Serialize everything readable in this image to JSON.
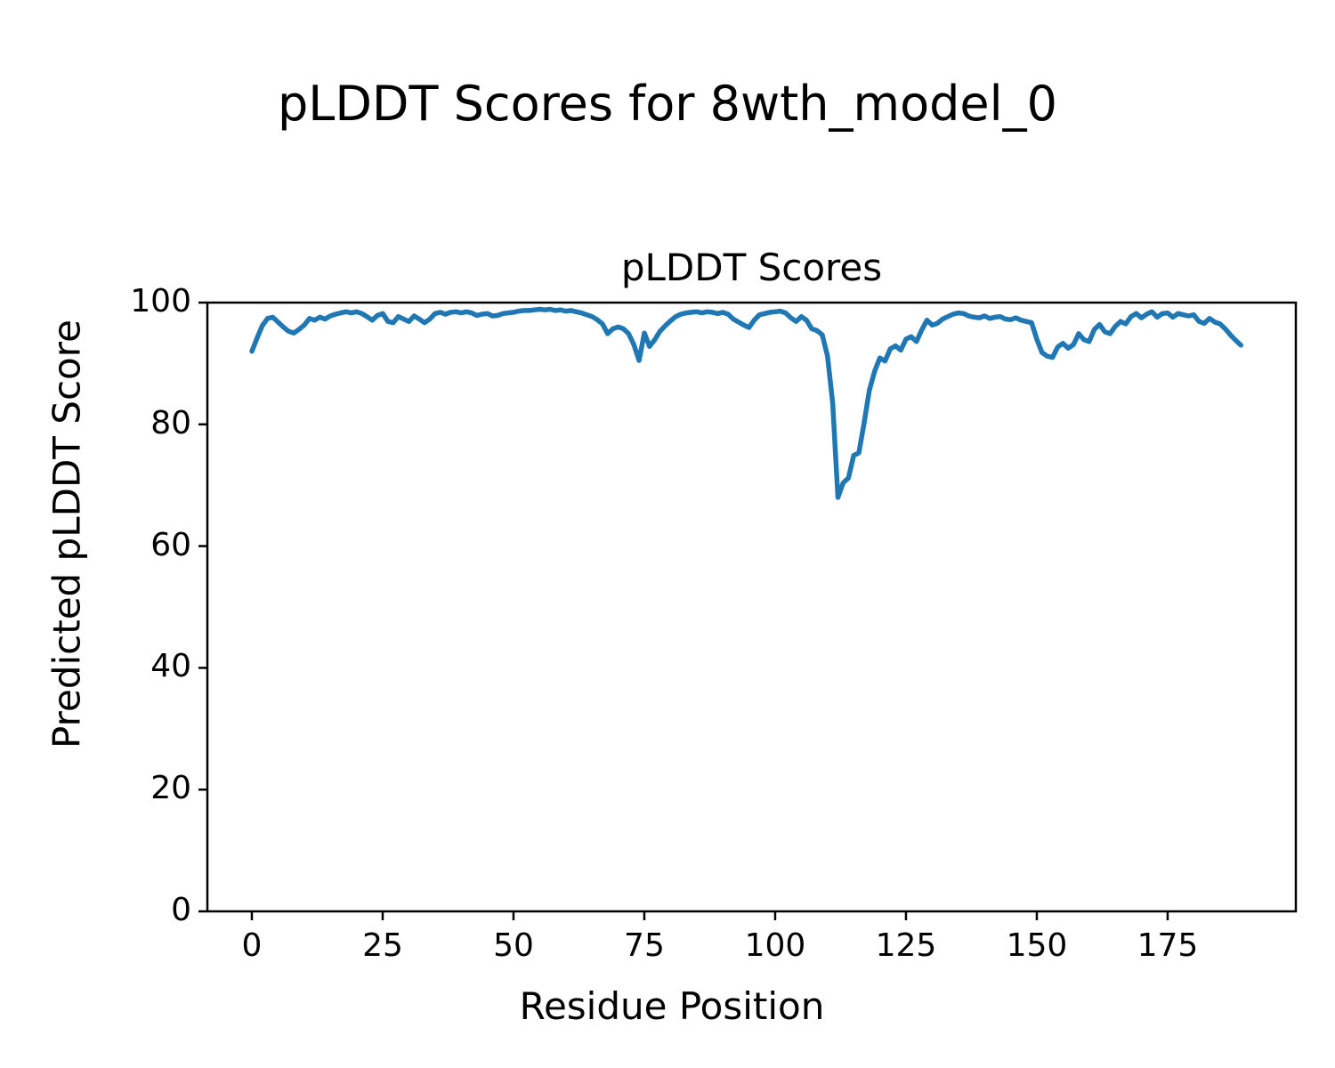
{
  "chart_data": {
    "type": "line",
    "figure_title": "pLDDT Scores for 8wth_model_0",
    "title": "pLDDT Scores",
    "xlabel": "Residue Position",
    "ylabel": "Predicted pLDDT Score",
    "x_ticks": [
      0,
      25,
      50,
      75,
      100,
      125,
      150,
      175
    ],
    "y_ticks": [
      0,
      20,
      40,
      60,
      80,
      100
    ],
    "xlim": [
      -8.5,
      199.5
    ],
    "ylim": [
      0,
      100
    ],
    "grid": false,
    "legend": "none",
    "line_color": "#1f77b4",
    "axis_color": "#000000",
    "x_start": 0,
    "x_step": 1,
    "values": [
      92.0,
      94.2,
      96.2,
      97.4,
      97.6,
      96.8,
      96.0,
      95.3,
      95.0,
      95.6,
      96.3,
      97.4,
      97.1,
      97.6,
      97.3,
      97.8,
      98.1,
      98.3,
      98.5,
      98.3,
      98.5,
      98.2,
      97.7,
      97.1,
      97.9,
      98.2,
      96.9,
      96.7,
      97.7,
      97.3,
      96.9,
      97.8,
      97.3,
      96.7,
      97.3,
      98.2,
      98.4,
      98.1,
      98.4,
      98.5,
      98.3,
      98.5,
      98.3,
      97.9,
      98.1,
      98.2,
      97.8,
      97.9,
      98.2,
      98.3,
      98.4,
      98.6,
      98.7,
      98.7,
      98.8,
      98.9,
      98.8,
      98.9,
      98.7,
      98.8,
      98.6,
      98.7,
      98.5,
      98.3,
      98.0,
      97.7,
      97.2,
      96.5,
      94.9,
      95.7,
      96.0,
      95.7,
      94.9,
      93.1,
      90.5,
      95.0,
      92.8,
      93.9,
      95.3,
      96.2,
      97.0,
      97.7,
      98.1,
      98.3,
      98.4,
      98.5,
      98.3,
      98.5,
      98.4,
      98.2,
      98.4,
      98.1,
      97.3,
      96.8,
      96.3,
      95.9,
      97.1,
      98.0,
      98.2,
      98.4,
      98.5,
      98.6,
      98.3,
      97.5,
      96.9,
      97.7,
      97.1,
      95.7,
      95.4,
      94.7,
      91.2,
      83.5,
      68.0,
      70.4,
      71.2,
      74.9,
      75.3,
      80.2,
      85.6,
      88.7,
      90.9,
      90.4,
      92.4,
      92.9,
      92.2,
      94.0,
      94.4,
      93.6,
      95.5,
      97.1,
      96.3,
      96.6,
      97.3,
      97.7,
      98.1,
      98.3,
      98.2,
      97.8,
      97.6,
      97.5,
      97.8,
      97.4,
      97.6,
      97.7,
      97.3,
      97.2,
      97.5,
      97.1,
      96.9,
      96.7,
      94.0,
      91.8,
      91.2,
      91.0,
      92.7,
      93.3,
      92.5,
      93.1,
      94.9,
      93.9,
      93.6,
      95.6,
      96.4,
      95.2,
      94.9,
      96.1,
      96.9,
      96.5,
      97.7,
      98.2,
      97.5,
      98.1,
      98.5,
      97.6,
      98.2,
      98.3,
      97.6,
      98.2,
      98.0,
      97.8,
      98.0,
      96.9,
      96.6,
      97.4,
      96.8,
      96.5,
      95.7,
      94.7,
      93.8,
      93.0
    ]
  }
}
